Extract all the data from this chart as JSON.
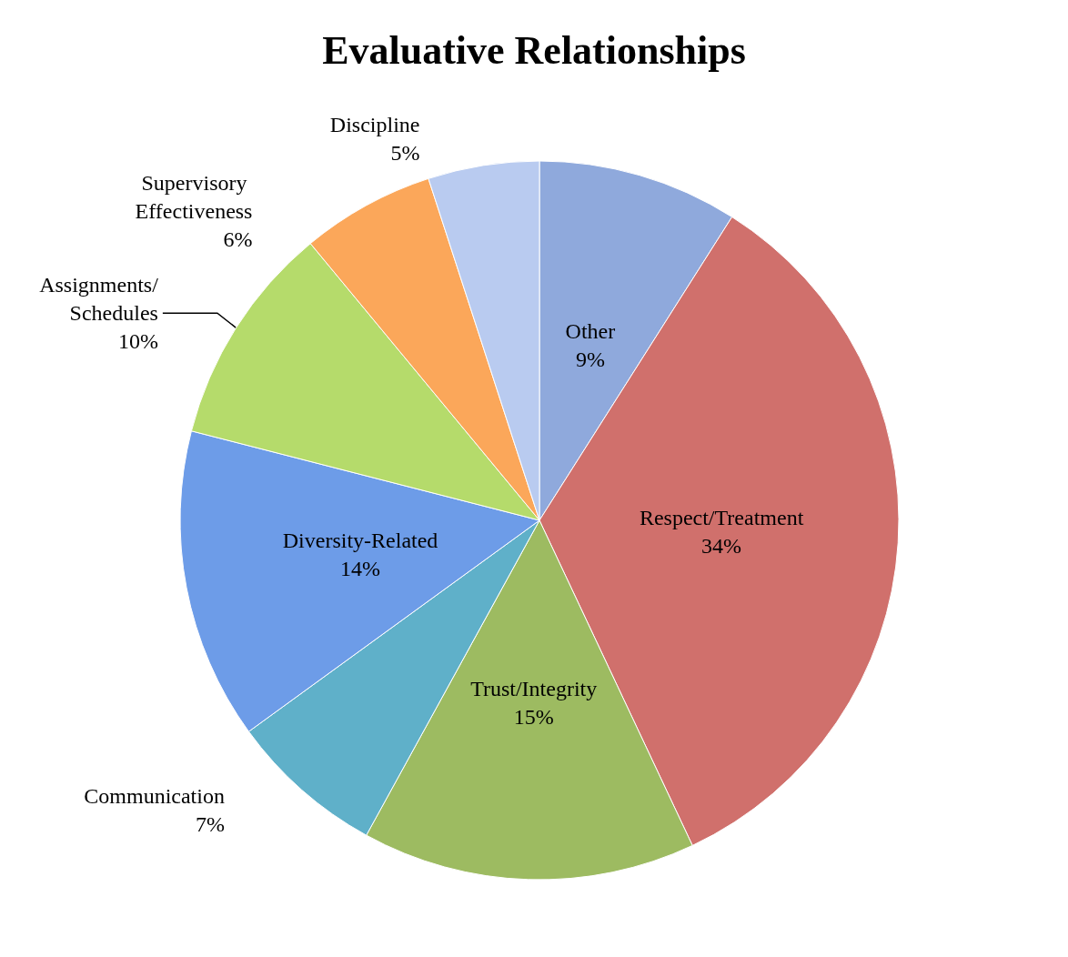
{
  "chart_data": {
    "type": "pie",
    "title": "Evaluative Relationships",
    "categories": [
      "Other",
      "Respect/Treatment",
      "Trust/Integrity",
      "Communication",
      "Diversity-Related",
      "Assignments/Schedules",
      "Supervisory Effectiveness",
      "Discipline"
    ],
    "values": [
      9,
      34,
      15,
      7,
      14,
      10,
      6,
      5
    ],
    "value_labels": [
      "9%",
      "34%",
      "15%",
      "7%",
      "14%",
      "10%",
      "6%",
      "5%"
    ],
    "colors": [
      "#8fa9dc",
      "#d0706c",
      "#9dbb61",
      "#5fb0c9",
      "#6d9ce8",
      "#b5db6b",
      "#fba75a",
      "#b9cbf0"
    ],
    "legend": false
  }
}
